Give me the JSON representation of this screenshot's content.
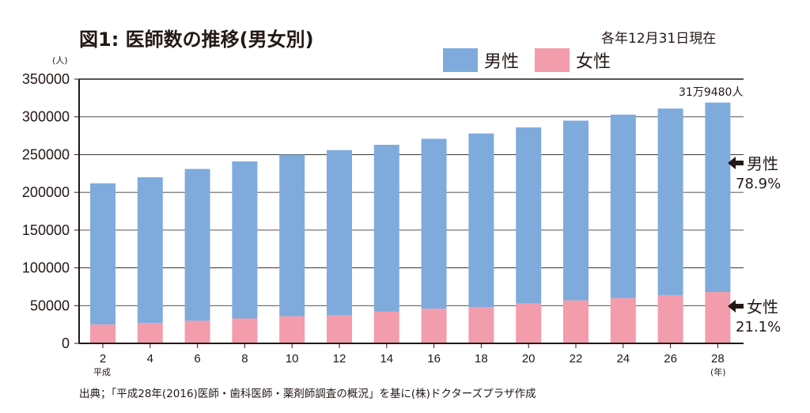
{
  "title": "図1: 医師数の推移(男女別)",
  "as_of": "各年12月31日現在",
  "source": "出典；「平成28年(2016)医師・歯科医師・薬剤師調査の概況」を基に(株)ドクターズプラザ作成",
  "colors": {
    "male": "#7fabdc",
    "female": "#f29cac",
    "axis": "#231815",
    "grid": "#231815"
  },
  "chart_data": {
    "type": "bar",
    "stacked": true,
    "title": "図1: 医師数の推移(男女別)",
    "ylabel": "(人)",
    "xlabel": "(年)",
    "x_era_label": "平成",
    "categories": [
      "2",
      "4",
      "6",
      "8",
      "10",
      "12",
      "14",
      "16",
      "18",
      "20",
      "22",
      "24",
      "26",
      "28"
    ],
    "series": [
      {
        "name": "男性",
        "values": [
          187000,
          193000,
          201000,
          208000,
          214000,
          219000,
          221000,
          225000,
          230000,
          233000,
          238000,
          243000,
          247000,
          251000
        ]
      },
      {
        "name": "女性",
        "values": [
          25000,
          27000,
          30000,
          33000,
          36000,
          37000,
          42000,
          46000,
          48000,
          53000,
          57000,
          60000,
          64000,
          68000
        ]
      }
    ],
    "ylim": [
      0,
      350000
    ],
    "yticks": [
      "0",
      "50000",
      "100000",
      "150000",
      "200000",
      "250000",
      "300000",
      "350000"
    ],
    "ytick_values": [
      0,
      50000,
      100000,
      150000,
      200000,
      250000,
      300000,
      350000
    ],
    "grid": true,
    "legend_position": "top-right",
    "annotations": {
      "total_last": "31万9480人",
      "male_label": "男性",
      "male_pct": "78.9%",
      "female_label": "女性",
      "female_pct": "21.1%"
    }
  }
}
